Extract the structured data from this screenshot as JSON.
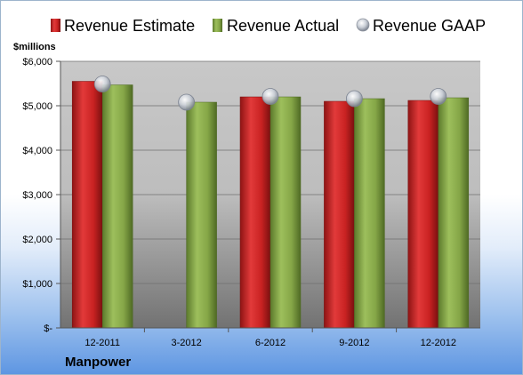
{
  "company": "Manpower",
  "colors": {
    "estimate": "#d42a2a",
    "actual": "#8fb14e",
    "gaap": "#c9ced6",
    "plot_background": "#c9c9c9",
    "accent": "#3a7bd5"
  },
  "chart_data": {
    "type": "bar",
    "unit_label": "$millions",
    "categories": [
      "12-2011",
      "3-2012",
      "6-2012",
      "9-2012",
      "12-2012"
    ],
    "series": [
      {
        "name": "Revenue Estimate",
        "kind": "bar",
        "values": [
          5550,
          null,
          5200,
          5100,
          5120
        ]
      },
      {
        "name": "Revenue Actual",
        "kind": "bar",
        "values": [
          5470,
          5080,
          5200,
          5160,
          5180
        ]
      },
      {
        "name": "Revenue GAAP",
        "kind": "marker",
        "values": [
          5490,
          5080,
          5210,
          5160,
          5210
        ]
      }
    ],
    "y_ticks": [
      "$-",
      "$1,000",
      "$2,000",
      "$3,000",
      "$4,000",
      "$5,000",
      "$6,000"
    ],
    "ylim": [
      0,
      6000
    ],
    "grid": true,
    "legend_position": "top"
  }
}
